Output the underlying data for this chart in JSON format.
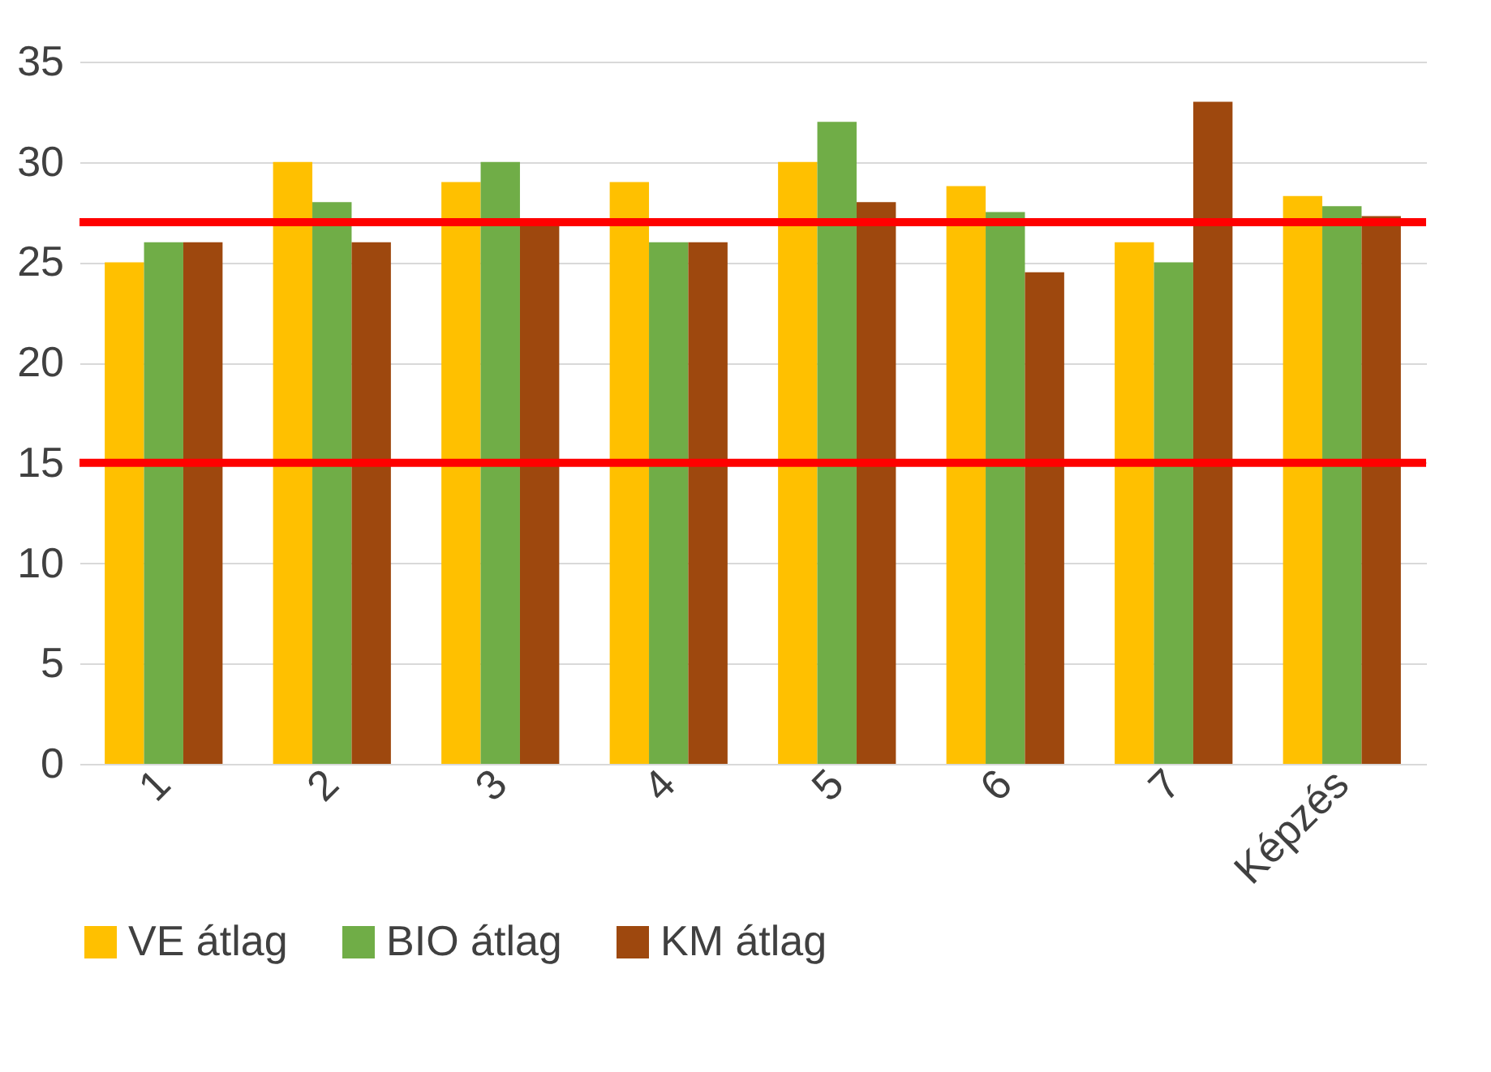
{
  "chart_data": {
    "type": "bar",
    "categories": [
      "1",
      "2",
      "3",
      "4",
      "5",
      "6",
      "7",
      "Képzés"
    ],
    "series": [
      {
        "name": "VE átlag",
        "color": "#ffc000",
        "values": [
          25,
          30,
          29,
          29,
          30,
          28.8,
          26,
          28.3
        ]
      },
      {
        "name": "BIO átlag",
        "color": "#70ad47",
        "values": [
          26,
          28,
          30,
          26,
          32,
          27.5,
          25,
          27.8
        ]
      },
      {
        "name": "KM átlag",
        "color": "#9e480e",
        "values": [
          26,
          26,
          27,
          26,
          28,
          24.5,
          33,
          27.3
        ]
      }
    ],
    "ylim": [
      0,
      35
    ],
    "yticks": [
      0,
      5,
      10,
      15,
      20,
      25,
      30,
      35
    ],
    "grid": "y",
    "legend": "bottom",
    "ref_lines": [
      {
        "axis": "y",
        "value": 27,
        "color": "#ff0000"
      },
      {
        "axis": "y",
        "value": 15,
        "color": "#ff0000"
      }
    ]
  }
}
